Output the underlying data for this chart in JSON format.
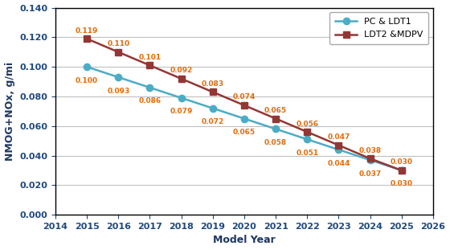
{
  "years": [
    2015,
    2016,
    2017,
    2018,
    2019,
    2020,
    2021,
    2022,
    2023,
    2024,
    2025
  ],
  "pc_ldt1": [
    0.1,
    0.093,
    0.086,
    0.079,
    0.072,
    0.065,
    0.058,
    0.051,
    0.044,
    0.037,
    0.03
  ],
  "ldt2_mdpv": [
    0.119,
    0.11,
    0.101,
    0.092,
    0.083,
    0.074,
    0.065,
    0.056,
    0.047,
    0.038,
    0.03
  ],
  "pc_ldt1_label": "PC & LDT1",
  "ldt2_mdpv_label": "LDT2 &MDPV",
  "pc_ldt1_color": "#4BACC6",
  "ldt2_mdpv_color": "#943634",
  "annotation_color": "#E36C09",
  "xlabel": "Model Year",
  "ylabel": "NMOG+NOx, g/mi",
  "axis_label_color": "#1F3864",
  "tick_label_color": "#1F497D",
  "xlim": [
    2014,
    2026
  ],
  "ylim": [
    0.0,
    0.14
  ],
  "yticks": [
    0.0,
    0.02,
    0.04,
    0.06,
    0.08,
    0.1,
    0.12,
    0.14
  ],
  "xticks": [
    2014,
    2015,
    2016,
    2017,
    2018,
    2019,
    2020,
    2021,
    2022,
    2023,
    2024,
    2025,
    2026
  ],
  "background_color": "#FFFFFF",
  "grid_color": "#C0C0C0"
}
